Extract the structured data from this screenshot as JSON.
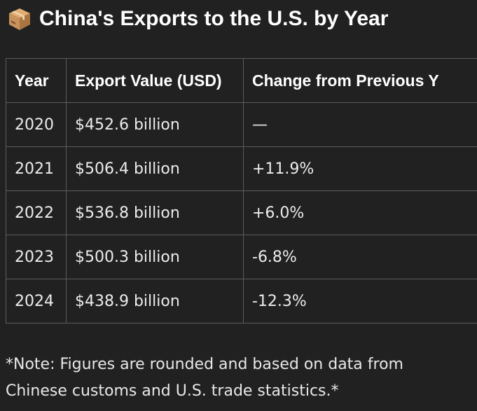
{
  "title": {
    "icon": "package-icon",
    "text": "China's Exports to the U.S. by Year"
  },
  "table": {
    "headers": [
      "Year",
      "Export Value (USD)",
      "Change from Previous Y"
    ],
    "rows": [
      [
        "2020",
        "$452.6 billion",
        "—"
      ],
      [
        "2021",
        "$506.4 billion",
        "+11.9%"
      ],
      [
        "2022",
        "$536.8 billion",
        "+6.0%"
      ],
      [
        "2023",
        "$500.3 billion",
        "-6.8%"
      ],
      [
        "2024",
        "$438.9 billion",
        "-12.3%"
      ]
    ]
  },
  "note": "*Note: Figures are rounded and based on data from Chinese customs and U.S. trade statistics.*",
  "colors": {
    "background": "#212121",
    "text": "#ececec",
    "border": "#5c5c5c",
    "box_icon": "#c8935a"
  }
}
